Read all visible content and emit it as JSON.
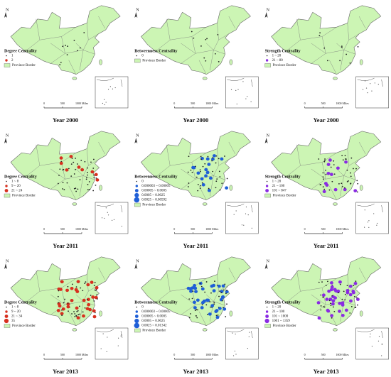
{
  "panels": [
    {
      "legend_title": "Degree Centrality",
      "legend_items": [
        "1",
        "2"
      ],
      "color": "#d7301f",
      "caption": "Year 2000"
    },
    {
      "legend_title": "Betweenness Centrality",
      "legend_items": [
        "0"
      ],
      "color": "#1f5fd7",
      "caption": "Year 2000"
    },
    {
      "legend_title": "Strength Centrality",
      "legend_items": [
        "1 ~ 20",
        "21 ~ 80"
      ],
      "color": "#8a2be2",
      "caption": "Year 2000"
    },
    {
      "legend_title": "Degree Centrality",
      "legend_items": [
        "1 ~ 8",
        "9 ~ 20",
        "21 ~ 24"
      ],
      "color": "#d7301f",
      "caption": "Year 2011"
    },
    {
      "legend_title": "Betweenness Centrality",
      "legend_items": [
        "0",
        "0.000003 ~ 0.00005",
        "0.00005 ~ 0.0005",
        "0.0005 ~ 0.0025",
        "0.0025 ~ 0.00592"
      ],
      "color": "#1f5fd7",
      "caption": "Year 2011"
    },
    {
      "legend_title": "Strength Centrality",
      "legend_items": [
        "1 ~ 20",
        "21 ~ 100",
        "101 ~ 847"
      ],
      "color": "#8a2be2",
      "caption": "Year 2011"
    },
    {
      "legend_title": "Degree Centrality",
      "legend_items": [
        "1 ~ 8",
        "9 ~ 20",
        "21 ~ 34",
        "35"
      ],
      "color": "#d7301f",
      "caption": "Year 2013"
    },
    {
      "legend_title": "Betweenness Centrality",
      "legend_items": [
        "0",
        "0.000003 ~ 0.00005",
        "0.00005 ~ 0.0005",
        "0.0005 ~ 0.0025",
        "0.0025 ~ 0.01342"
      ],
      "color": "#1f5fd7",
      "caption": "Year 2013"
    },
    {
      "legend_title": "Strength Centrality",
      "legend_items": [
        "1 ~ 20",
        "21 ~ 100",
        "101 ~ 1000",
        "1001 ~ 1359"
      ],
      "color": "#8a2be2",
      "caption": "Year 2013"
    }
  ],
  "border_label": "Province Border",
  "north": "N",
  "scale_labels": [
    "0",
    "500",
    "1000 Miles"
  ]
}
